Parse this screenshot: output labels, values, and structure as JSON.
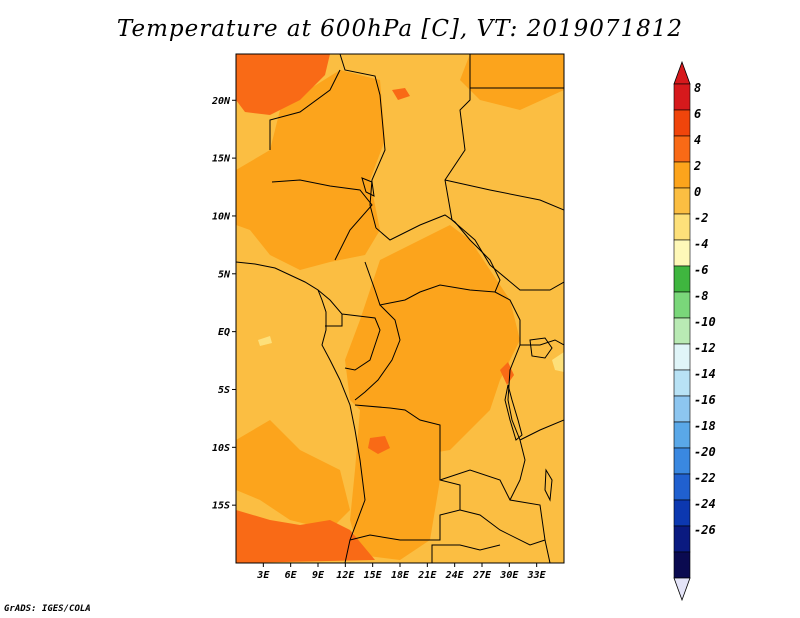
{
  "title": "Temperature at 600hPa [C], VT: 2019071812",
  "credit": "GrADS: IGES/COLA",
  "map": {
    "lon_range": [
      0,
      36
    ],
    "lat_range": [
      -20,
      24
    ],
    "lat_labels": [
      "20N",
      "15N",
      "10N",
      "5N",
      "EQ",
      "5S",
      "10S",
      "15S"
    ],
    "lat_values": [
      20,
      15,
      10,
      5,
      0,
      -5,
      -10,
      -15
    ],
    "lon_labels": [
      "3E",
      "6E",
      "9E",
      "12E",
      "15E",
      "18E",
      "21E",
      "24E",
      "27E",
      "30E",
      "33E"
    ],
    "lon_values": [
      3,
      6,
      9,
      12,
      15,
      18,
      21,
      24,
      27,
      30,
      33
    ],
    "field_colors": {
      "base": "#fbbe42",
      "warm": "#fca41c",
      "hot": "#f96a16",
      "cool": "#fde07a"
    }
  },
  "colorbar": {
    "labels": [
      "8",
      "6",
      "4",
      "2",
      "0",
      "-2",
      "-4",
      "-6",
      "-8",
      "-10",
      "-12",
      "-14",
      "-16",
      "-18",
      "-20",
      "-22",
      "-24",
      "-26"
    ],
    "colors": [
      "#d6191c",
      "#f0450b",
      "#f96a16",
      "#fca41c",
      "#fbbe42",
      "#fde07a",
      "#fef8b8",
      "#3fb63f",
      "#7ad77a",
      "#b9eab4",
      "#e0f5f8",
      "#b8e2f5",
      "#8dc6f0",
      "#5aa8e8",
      "#3a88e0",
      "#2060cf",
      "#0c38b0",
      "#0a1a80",
      "#0a0a50"
    ],
    "bottom_color": "#e4e4f8",
    "top_color": "#d6191c"
  }
}
